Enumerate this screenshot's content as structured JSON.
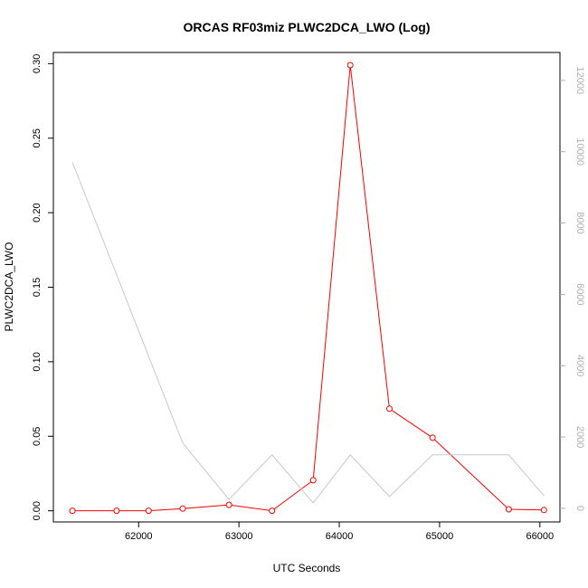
{
  "chart_data": {
    "type": "line",
    "title": "ORCAS RF03miz PLWC2DCA_LWO (Log)",
    "xlabel": "UTC Seconds",
    "ylabel": "PLWC2DCA_LWO",
    "xlim": [
      61150,
      66200
    ],
    "ylim": [
      -0.0075,
      0.3075
    ],
    "y2lim": [
      -382,
      12782
    ],
    "x_ticks": [
      62000,
      63000,
      64000,
      65000,
      66000
    ],
    "y_ticks": [
      0.0,
      0.05,
      0.1,
      0.15,
      0.2,
      0.25,
      0.3
    ],
    "y_tick_labels": [
      "0.00",
      "0.05",
      "0.10",
      "0.15",
      "0.20",
      "0.25",
      "0.30"
    ],
    "y2_ticks": [
      0,
      2000,
      4000,
      6000,
      8000,
      10000,
      12000
    ],
    "colors": {
      "primary": "#ff0000",
      "secondary": "#c8c8c8",
      "axis": "#000000",
      "right_axis": "#b0b0b0"
    },
    "series": [
      {
        "axis": "left",
        "color": "#ff0000",
        "marker": "open-circle",
        "x": [
          61340,
          61780,
          62100,
          62440,
          62900,
          63330,
          63740,
          64110,
          64500,
          64930,
          65690,
          66040
        ],
        "y": [
          0.0,
          0.0,
          0.0,
          0.0015,
          0.004,
          0.0,
          0.0205,
          0.299,
          0.0685,
          0.049,
          0.001,
          0.0005
        ]
      },
      {
        "axis": "right",
        "color": "#c8c8c8",
        "marker": "none",
        "x": [
          61340,
          62440,
          62900,
          63330,
          63740,
          64110,
          64500,
          64930,
          65690,
          66040
        ],
        "y": [
          9700,
          1830,
          250,
          1500,
          150,
          1500,
          330,
          1500,
          1500,
          350
        ]
      }
    ]
  }
}
